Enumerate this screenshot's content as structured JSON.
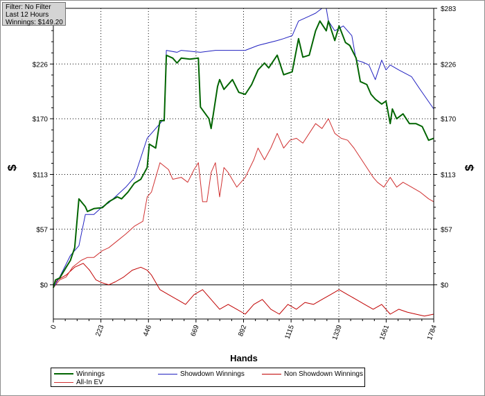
{
  "info": {
    "filter": "Filter: No Filter",
    "period": "Last  12 Hours",
    "winnings": "Winnings: $149.20"
  },
  "legend": {
    "winnings": "Winnings",
    "showdown": "Showdown Winnings",
    "non_showdown": "Non Showdown Winnings",
    "allin_ev": "All-In EV"
  },
  "colors": {
    "winnings": "#006400",
    "showdown": "#2020c0",
    "non_showdown": "#c00000",
    "allin_ev": "#d03030",
    "zero_line": "#000000",
    "grid": "#000000"
  },
  "chart_data": {
    "type": "line",
    "xlabel": "Hands",
    "ylabel": "$",
    "xlim": [
      0,
      1784
    ],
    "ylim": [
      -35,
      283
    ],
    "x_ticks": [
      {
        "value": 0,
        "label": "0"
      },
      {
        "value": 223,
        "label": "223"
      },
      {
        "value": 446,
        "label": "446"
      },
      {
        "value": 669,
        "label": "669"
      },
      {
        "value": 892,
        "label": "892"
      },
      {
        "value": 1115,
        "label": "1115"
      },
      {
        "value": 1339,
        "label": "1339"
      },
      {
        "value": 1561,
        "label": "1561"
      },
      {
        "value": 1784,
        "label": "1784"
      }
    ],
    "y_ticks": [
      {
        "value": 0,
        "label": "$0"
      },
      {
        "value": 57,
        "label": "$57"
      },
      {
        "value": 113,
        "label": "$113"
      },
      {
        "value": 170,
        "label": "$170"
      },
      {
        "value": 226,
        "label": "$226"
      },
      {
        "value": 283,
        "label": "$283"
      }
    ],
    "grid": true,
    "series": [
      {
        "name": "Winnings",
        "x": [
          0,
          10,
          30,
          60,
          80,
          100,
          120,
          150,
          160,
          190,
          230,
          260,
          300,
          320,
          350,
          380,
          410,
          440,
          450,
          480,
          500,
          520,
          530,
          560,
          580,
          600,
          640,
          680,
          690,
          730,
          740,
          770,
          780,
          800,
          840,
          870,
          900,
          930,
          960,
          990,
          1010,
          1050,
          1080,
          1120,
          1150,
          1170,
          1200,
          1230,
          1250,
          1280,
          1290,
          1320,
          1340,
          1370,
          1390,
          1420,
          1440,
          1470,
          1490,
          1510,
          1540,
          1560,
          1580,
          1590,
          1610,
          1640,
          1670,
          1700,
          1730,
          1760,
          1784
        ],
        "y": [
          -3,
          5,
          7,
          18,
          25,
          38,
          88,
          80,
          75,
          78,
          79,
          85,
          90,
          88,
          95,
          104,
          108,
          120,
          144,
          140,
          168,
          168,
          235,
          232,
          227,
          232,
          231,
          232,
          182,
          170,
          160,
          203,
          210,
          200,
          210,
          197,
          195,
          205,
          220,
          227,
          222,
          235,
          215,
          218,
          252,
          233,
          235,
          260,
          270,
          260,
          270,
          250,
          265,
          248,
          245,
          232,
          208,
          205,
          195,
          190,
          185,
          188,
          165,
          180,
          170,
          175,
          165,
          165,
          162,
          148,
          150
        ]
      },
      {
        "name": "Showdown Winnings",
        "x": [
          0,
          30,
          80,
          120,
          150,
          190,
          230,
          260,
          300,
          340,
          380,
          410,
          440,
          460,
          480,
          520,
          530,
          580,
          600,
          690,
          760,
          780,
          900,
          960,
          1050,
          1080,
          1120,
          1150,
          1200,
          1230,
          1260,
          1280,
          1290,
          1320,
          1360,
          1400,
          1420,
          1450,
          1480,
          1510,
          1540,
          1560,
          1580,
          1620,
          1680,
          1720,
          1784
        ],
        "y": [
          -3,
          8,
          30,
          40,
          72,
          72,
          80,
          84,
          92,
          100,
          110,
          130,
          150,
          155,
          160,
          170,
          240,
          238,
          240,
          238,
          240,
          240,
          240,
          245,
          250,
          252,
          255,
          270,
          275,
          278,
          283,
          283,
          270,
          260,
          265,
          255,
          230,
          228,
          225,
          210,
          230,
          220,
          225,
          220,
          213,
          200,
          180
        ]
      },
      {
        "name": "All-In EV",
        "x": [
          0,
          30,
          60,
          90,
          130,
          160,
          190,
          230,
          260,
          300,
          340,
          380,
          420,
          440,
          460,
          500,
          540,
          560,
          600,
          630,
          660,
          680,
          700,
          720,
          740,
          760,
          780,
          800,
          820,
          860,
          900,
          940,
          960,
          990,
          1020,
          1050,
          1080,
          1110,
          1140,
          1170,
          1200,
          1230,
          1260,
          1290,
          1320,
          1350,
          1380,
          1410,
          1440,
          1470,
          1500,
          1520,
          1550,
          1580,
          1610,
          1640,
          1680,
          1720,
          1760,
          1784
        ],
        "y": [
          -3,
          5,
          8,
          18,
          25,
          28,
          28,
          35,
          38,
          45,
          52,
          60,
          65,
          90,
          95,
          125,
          118,
          108,
          110,
          105,
          118,
          125,
          85,
          85,
          115,
          125,
          90,
          120,
          115,
          100,
          110,
          128,
          140,
          128,
          140,
          155,
          140,
          148,
          150,
          145,
          155,
          165,
          160,
          170,
          155,
          150,
          148,
          140,
          130,
          120,
          110,
          105,
          100,
          110,
          100,
          105,
          100,
          95,
          88,
          85
        ]
      },
      {
        "name": "Non Showdown Winnings",
        "x": [
          0,
          20,
          60,
          100,
          140,
          170,
          200,
          230,
          260,
          290,
          330,
          370,
          410,
          440,
          460,
          500,
          540,
          580,
          620,
          660,
          700,
          740,
          780,
          820,
          860,
          900,
          940,
          980,
          1020,
          1060,
          1100,
          1140,
          1180,
          1220,
          1260,
          1300,
          1340,
          1380,
          1420,
          1460,
          1500,
          1540,
          1580,
          1620,
          1660,
          1700,
          1740,
          1784
        ],
        "y": [
          0,
          5,
          10,
          18,
          22,
          15,
          5,
          2,
          0,
          3,
          8,
          15,
          18,
          15,
          10,
          -5,
          -10,
          -15,
          -20,
          -10,
          -5,
          -15,
          -25,
          -20,
          -25,
          -30,
          -20,
          -15,
          -25,
          -30,
          -20,
          -25,
          -18,
          -20,
          -15,
          -10,
          -5,
          -10,
          -15,
          -20,
          -25,
          -20,
          -30,
          -25,
          -28,
          -30,
          -32,
          -30
        ]
      }
    ]
  }
}
